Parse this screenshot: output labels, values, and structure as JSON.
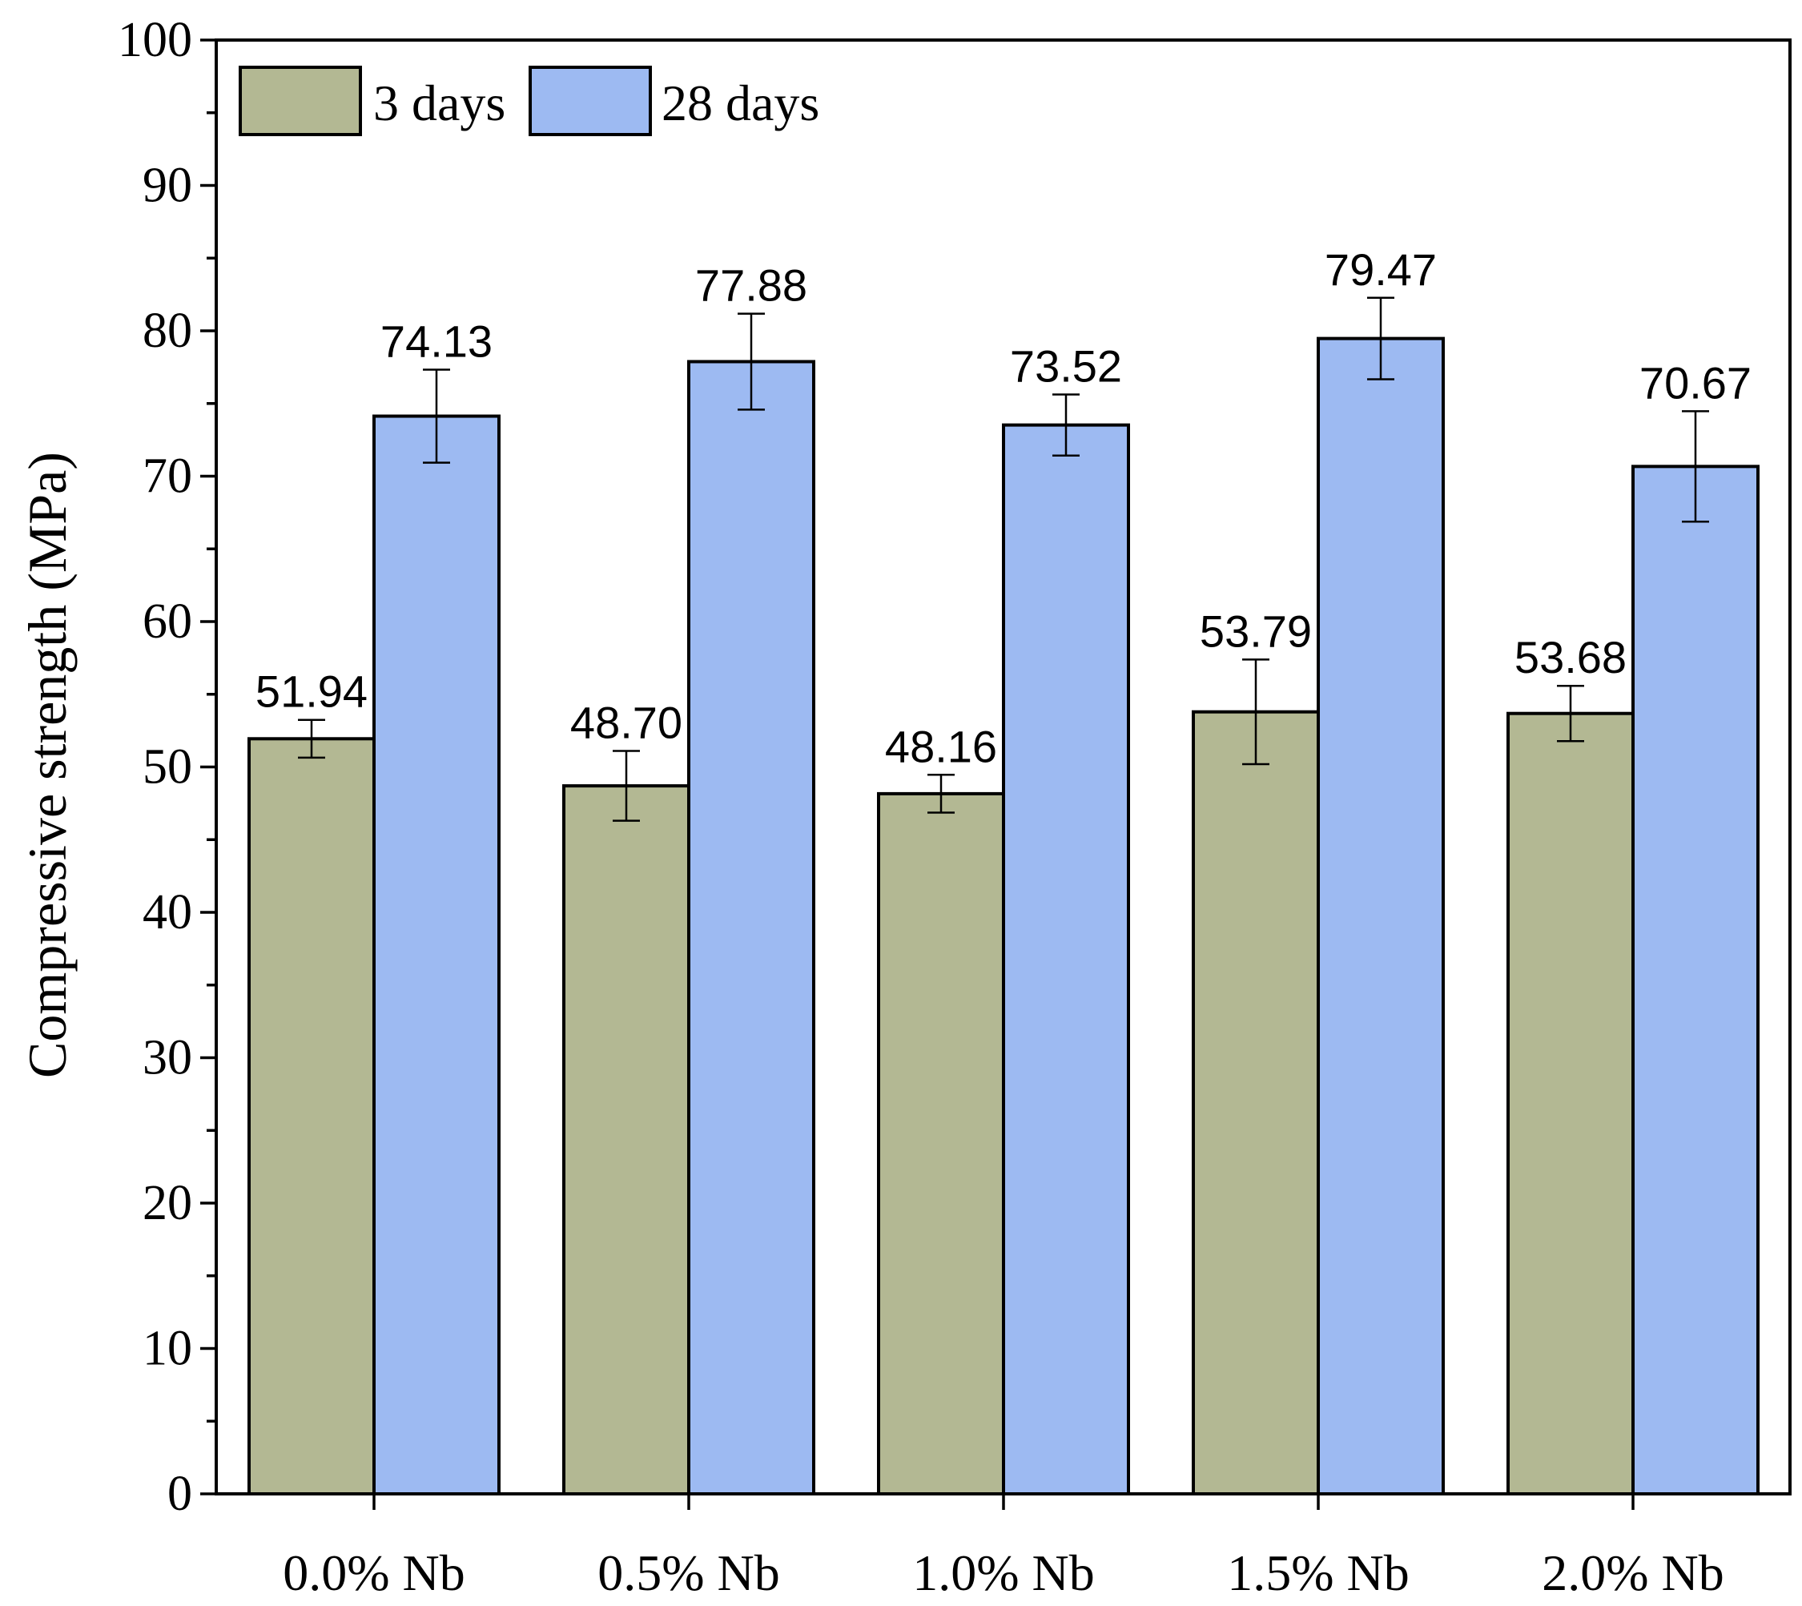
{
  "chart_data": {
    "type": "bar",
    "title": "",
    "xlabel": "",
    "ylabel": "Compressive strength (MPa)",
    "ylim": [
      0,
      100
    ],
    "yticks": [
      "0",
      "10",
      "20",
      "30",
      "40",
      "50",
      "60",
      "70",
      "80",
      "90",
      "100"
    ],
    "grid": false,
    "legend_position": "top-left",
    "categories": [
      "0.0% Nb",
      "0.5% Nb",
      "1.0% Nb",
      "1.5% Nb",
      "2.0% Nb"
    ],
    "series": [
      {
        "name": "3 days",
        "color": "#b3b893",
        "values": [
          51.94,
          48.7,
          48.16,
          53.79,
          53.68
        ],
        "labels": [
          "51.94",
          "48.70",
          "48.16",
          "53.79",
          "53.68"
        ],
        "errors": [
          1.3,
          2.4,
          1.3,
          3.6,
          1.9
        ]
      },
      {
        "name": "28 days",
        "color": "#9dbaf2",
        "values": [
          74.13,
          77.88,
          73.52,
          79.47,
          70.67
        ],
        "labels": [
          "74.13",
          "77.88",
          "73.52",
          "79.47",
          "70.67"
        ],
        "errors": [
          3.2,
          3.3,
          2.1,
          2.8,
          3.8
        ]
      }
    ]
  }
}
